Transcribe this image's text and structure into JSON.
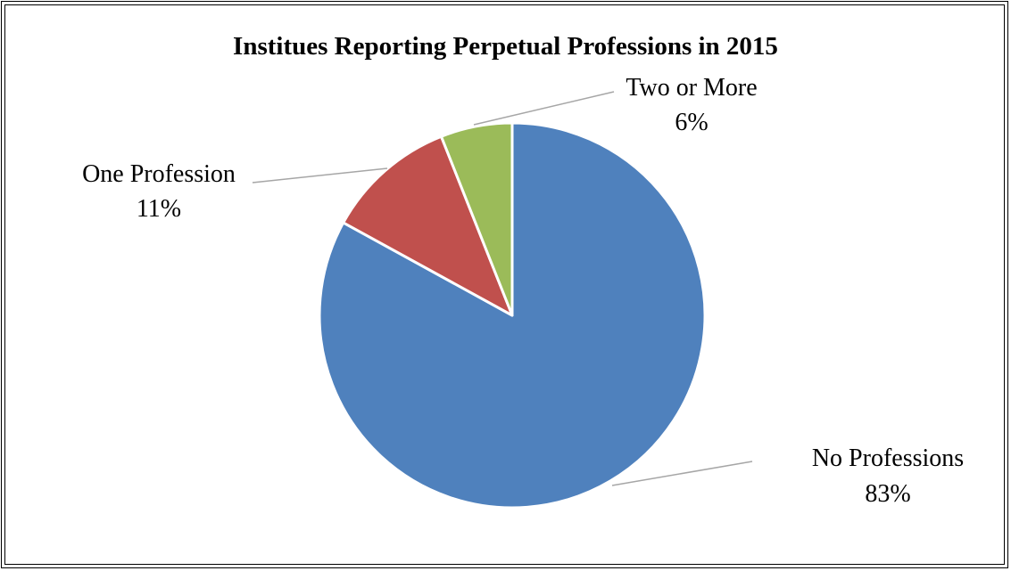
{
  "chart_data": {
    "type": "pie",
    "title": "Institues Reporting Perpetual Professions in 2015",
    "slices": [
      {
        "label": "No Professions",
        "value": 83,
        "percent_label": "83%",
        "color": "#4f81bd"
      },
      {
        "label": "One Profession",
        "value": 11,
        "percent_label": "11%",
        "color": "#c0504d"
      },
      {
        "label": "Two or More",
        "value": 6,
        "percent_label": "6%",
        "color": "#9bbb59"
      }
    ],
    "start_angle": "12 o'clock",
    "direction": "clockwise",
    "legend": "none",
    "data_labels": "outside with leader lines"
  }
}
